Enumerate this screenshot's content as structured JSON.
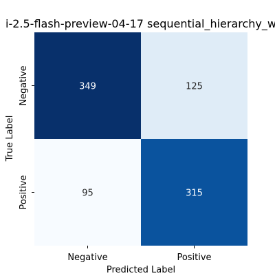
{
  "chart_data": {
    "type": "heatmap",
    "title": "i-2.5-flash-preview-04-17 sequential_hierarchy_w",
    "xlabel": "Predicted Label",
    "ylabel": "True Label",
    "x_categories": [
      "Negative",
      "Positive"
    ],
    "y_categories": [
      "Negative",
      "Positive"
    ],
    "values": [
      [
        349,
        125
      ],
      [
        95,
        315
      ]
    ],
    "colormap": "Blues",
    "color_range": [
      95,
      349
    ],
    "colorbar": false,
    "colors": {
      "low": "#f7fbff",
      "high": "#08306b",
      "text_dark": "#262626",
      "text_light": "#ffffff"
    }
  }
}
